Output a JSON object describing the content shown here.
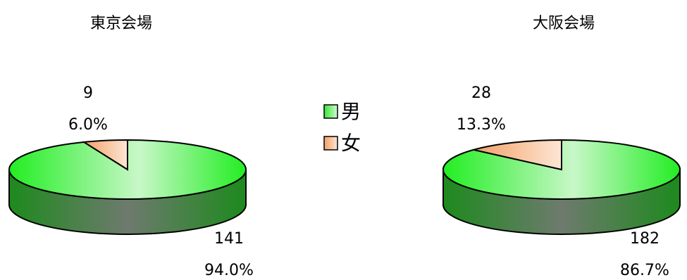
{
  "chart_data": [
    {
      "type": "pie",
      "title": "東京会場",
      "categories": [
        "男",
        "女"
      ],
      "values": [
        141,
        9
      ],
      "percent_labels": [
        "94.0%",
        "6.0%"
      ],
      "count_labels": [
        "141",
        "9"
      ]
    },
    {
      "type": "pie",
      "title": "大阪会場",
      "categories": [
        "男",
        "女"
      ],
      "values": [
        182,
        28
      ],
      "percent_labels": [
        "86.7%",
        "13.3%"
      ],
      "count_labels": [
        "182",
        "28"
      ]
    }
  ],
  "legend": {
    "placement": "center",
    "items": [
      {
        "label": "男",
        "color": "#33e833"
      },
      {
        "label": "女",
        "color": "#f7b07e"
      }
    ]
  }
}
